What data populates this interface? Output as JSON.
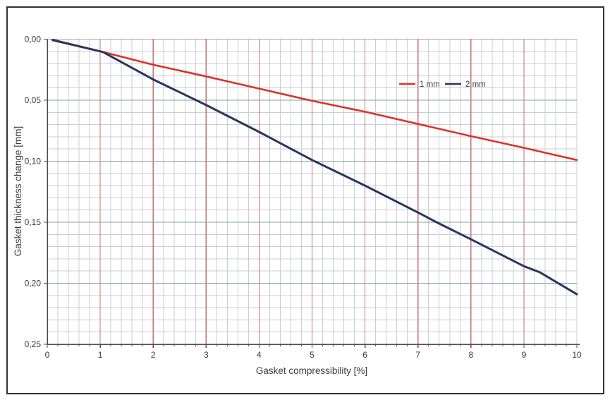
{
  "figure": {
    "background_color": "#ffffff",
    "frame_color": "#333333"
  },
  "chart_data": {
    "type": "line",
    "title": "",
    "xlabel": "Gasket compressibility  [%]",
    "ylabel": "Gasket thickness change  [mm]",
    "xlim": [
      0,
      10
    ],
    "ylim": [
      0,
      0.25
    ],
    "y_axis_direction": "increases downward (0,00 at top, 0,25 at bottom)",
    "x_tick_values": [
      0,
      1,
      2,
      3,
      4,
      5,
      6,
      7,
      8,
      9,
      10
    ],
    "x_tick_labels": [
      "0",
      "1",
      "2",
      "3",
      "4",
      "5",
      "6",
      "7",
      "8",
      "9",
      "10"
    ],
    "y_tick_values": [
      0,
      0.05,
      0.1,
      0.15,
      0.2,
      0.25
    ],
    "y_tick_labels": [
      "0,00",
      "0,05",
      "0,10",
      "0,15",
      "0,20",
      "0,25"
    ],
    "x_minor_step": 0.2,
    "y_minor_step": 0.01,
    "grid": {
      "on": true,
      "minor_color": "#cbced4",
      "major_vertical_color": "#c57172",
      "major_horizontal_color": "#79a99a",
      "top_edge_color": "#a6a6a6",
      "axis_color": "#4d4d4d"
    },
    "legend": {
      "position": "inside top-right",
      "entries": [
        "1 mm",
        "2 mm"
      ]
    },
    "series": [
      {
        "name": "1 mm",
        "color": "#d8352e",
        "x": [
          0.1,
          1.05,
          2,
          3,
          4,
          5,
          6,
          7,
          8,
          9,
          10
        ],
        "y": [
          0.001,
          0.0105,
          0.021,
          0.0305,
          0.0405,
          0.0505,
          0.0595,
          0.0695,
          0.0795,
          0.089,
          0.099
        ]
      },
      {
        "name": "2 mm",
        "color": "#27375e",
        "x": [
          0.1,
          1.05,
          2,
          3,
          4,
          5,
          6,
          7,
          7.35,
          8,
          9,
          9.3,
          10
        ],
        "y": [
          0.0005,
          0.0105,
          0.033,
          0.054,
          0.076,
          0.099,
          0.12,
          0.142,
          0.15,
          0.164,
          0.186,
          0.191,
          0.209
        ]
      }
    ]
  }
}
